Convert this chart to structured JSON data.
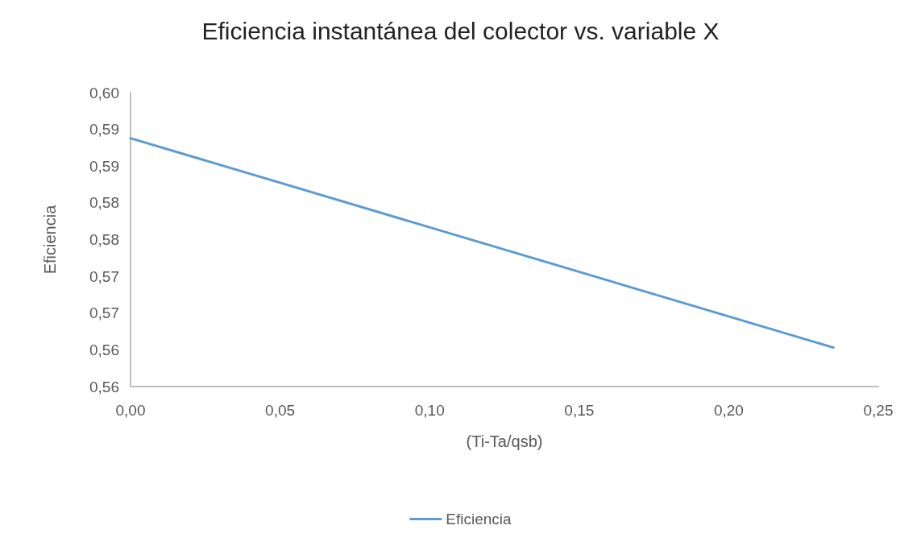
{
  "chart_data": {
    "type": "line",
    "title": "Eficiencia instantánea del colector vs. variable X",
    "xlabel": "(Ti-Ta/qsb)",
    "ylabel": "Eficiencia",
    "x": [
      0,
      0.235
    ],
    "series": [
      {
        "name": "Eficiencia",
        "color": "#5b9bd5",
        "values": [
          0.5938,
          0.5653
        ]
      }
    ],
    "xlim": [
      0,
      0.25
    ],
    "xticks": [
      {
        "value": 0,
        "label": "0,00"
      },
      {
        "value": 0.05,
        "label": "0,05"
      },
      {
        "value": 0.1,
        "label": "0,10"
      },
      {
        "value": 0.15,
        "label": "0,15"
      },
      {
        "value": 0.2,
        "label": "0,20"
      },
      {
        "value": 0.25,
        "label": "0,25"
      }
    ],
    "ylim": [
      0.56,
      0.6
    ],
    "yticks": [
      {
        "value": 0.56,
        "label": "0,56"
      },
      {
        "value": 0.565,
        "label": "0,56"
      },
      {
        "value": 0.57,
        "label": "0,57"
      },
      {
        "value": 0.575,
        "label": "0,57"
      },
      {
        "value": 0.58,
        "label": "0,58"
      },
      {
        "value": 0.585,
        "label": "0,58"
      },
      {
        "value": 0.59,
        "label": "0,59"
      },
      {
        "value": 0.595,
        "label": "0,59"
      },
      {
        "value": 0.6,
        "label": "0,60"
      }
    ],
    "grid": false,
    "legend": "bottom",
    "marker": "none",
    "line_style": "solid"
  }
}
